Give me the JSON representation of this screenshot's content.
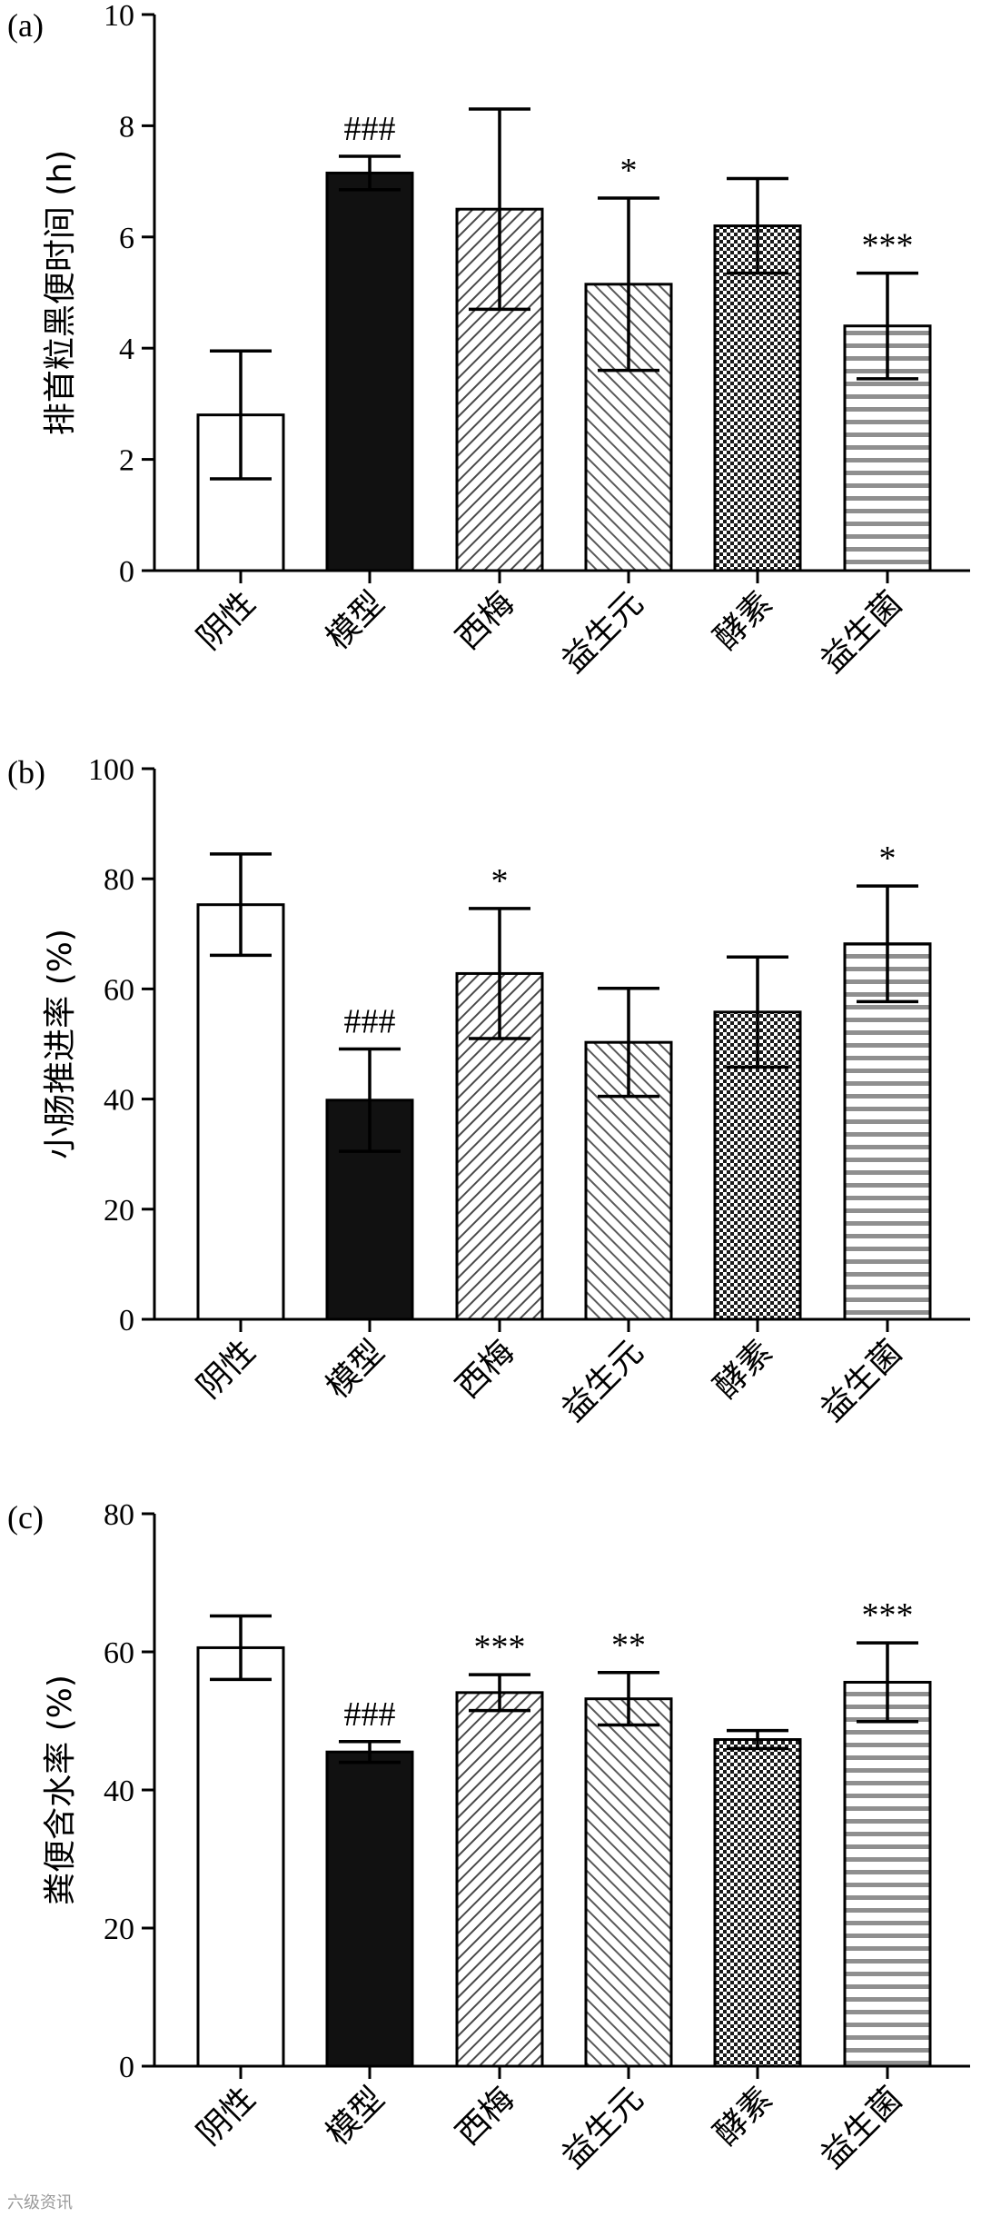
{
  "watermark": "六级资讯",
  "chart_data": [
    {
      "type": "bar",
      "panel": "(a)",
      "ylabel": "排首粒黑便时间 (h)",
      "ylim": [
        0,
        10
      ],
      "yticks": [
        0,
        2,
        4,
        6,
        8,
        10
      ],
      "categories": [
        "阴性",
        "模型",
        "西梅",
        "益生元",
        "酵素",
        "益生菌"
      ],
      "values": [
        2.8,
        7.15,
        6.5,
        5.15,
        6.2,
        4.4
      ],
      "errors": [
        1.15,
        0.3,
        1.8,
        1.55,
        0.85,
        0.95
      ],
      "significance": [
        "",
        "###",
        "",
        "*",
        "",
        "***"
      ]
    },
    {
      "type": "bar",
      "panel": "(b)",
      "ylabel": "小肠推进率 (%)",
      "ylim": [
        0,
        100
      ],
      "yticks": [
        0,
        20,
        40,
        60,
        80,
        100
      ],
      "categories": [
        "阴性",
        "模型",
        "西梅",
        "益生元",
        "酵素",
        "益生菌"
      ],
      "values": [
        75.3,
        39.8,
        62.8,
        50.3,
        55.8,
        68.2
      ],
      "errors": [
        9.2,
        9.3,
        11.8,
        9.8,
        10.0,
        10.5
      ],
      "significance": [
        "",
        "###",
        "*",
        "",
        "",
        "*"
      ]
    },
    {
      "type": "bar",
      "panel": "(c)",
      "ylabel": "粪便含水率 (%)",
      "ylim": [
        0,
        80
      ],
      "yticks": [
        0,
        20,
        40,
        60,
        80
      ],
      "categories": [
        "阴性",
        "模型",
        "西梅",
        "益生元",
        "酵素",
        "益生菌"
      ],
      "values": [
        60.6,
        45.5,
        54.1,
        53.2,
        47.3,
        55.6
      ],
      "errors": [
        4.6,
        1.5,
        2.6,
        3.8,
        1.3,
        5.7
      ],
      "significance": [
        "",
        "###",
        "***",
        "**",
        "",
        "***"
      ]
    }
  ],
  "colors": {
    "negative": "#ffffff",
    "model": "#111111",
    "prune_hatch": "#555555",
    "prebiotic_hatch": "#666666",
    "enzyme_check": "#222222",
    "probiotic_stripe": "#8a8a8a"
  }
}
